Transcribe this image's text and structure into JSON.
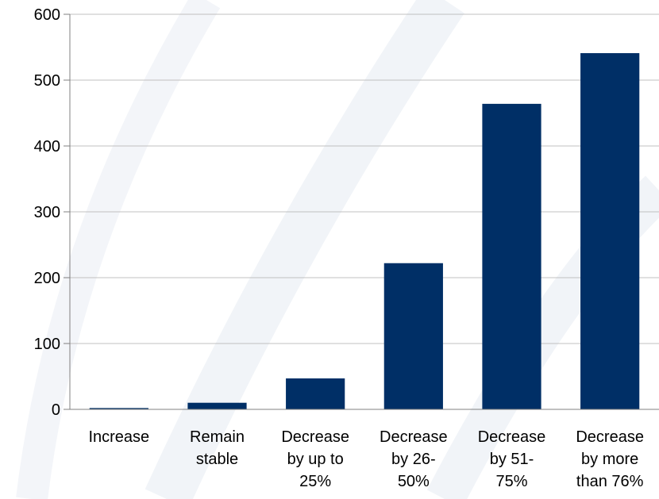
{
  "chart_data": {
    "type": "bar",
    "title": "",
    "xlabel": "",
    "ylabel": "",
    "categories": [
      [
        "Increase"
      ],
      [
        "Remain",
        "stable"
      ],
      [
        "Decrease",
        "by up to",
        "25%"
      ],
      [
        "Decrease",
        "by 26-",
        "50%"
      ],
      [
        "Decrease",
        "by 51-",
        "75%"
      ],
      [
        "Decrease",
        "by more",
        "than 76%"
      ]
    ],
    "values": [
      2,
      10,
      47,
      222,
      464,
      541
    ],
    "ylim": [
      0,
      600
    ],
    "yticks": [
      0,
      100,
      200,
      300,
      400,
      500,
      600
    ],
    "grid": true,
    "bar_color": "#002f66",
    "grid_color": "#c0c0c0",
    "axis_color": "#808080"
  }
}
